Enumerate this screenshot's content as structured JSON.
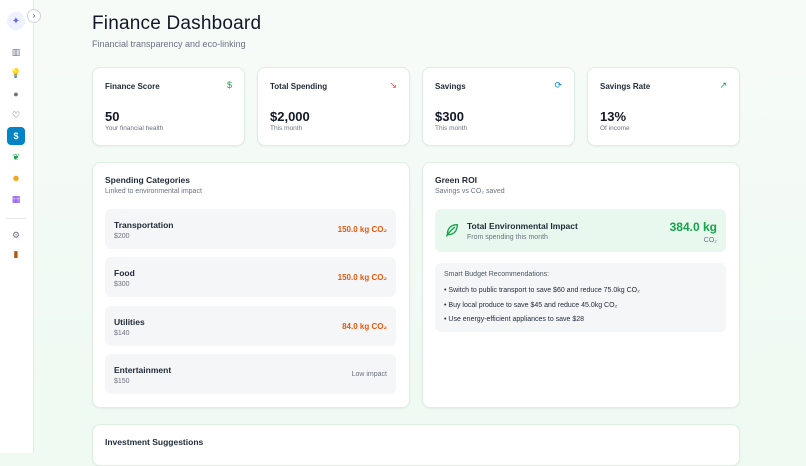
{
  "sidebar": {
    "collapse_glyph": "›",
    "items": [
      {
        "name": "dashboard",
        "glyph": "▥"
      },
      {
        "name": "ideas",
        "glyph": "💡"
      },
      {
        "name": "chat",
        "glyph": "●"
      },
      {
        "name": "health",
        "glyph": "♡"
      },
      {
        "name": "finance",
        "glyph": "$"
      },
      {
        "name": "eco",
        "glyph": "❦"
      },
      {
        "name": "people",
        "glyph": "☻"
      },
      {
        "name": "calendar",
        "glyph": "▦"
      },
      {
        "name": "settings",
        "glyph": "⚙"
      },
      {
        "name": "logout",
        "glyph": "▮"
      }
    ]
  },
  "header": {
    "title": "Finance Dashboard",
    "subtitle": "Financial transparency and eco-linking"
  },
  "stats": [
    {
      "label": "Finance Score",
      "value": "50",
      "note": "Your financial health",
      "icon": "$",
      "icon_color": "#16a34a"
    },
    {
      "label": "Total Spending",
      "value": "$2,000",
      "note": "This month",
      "icon": "↘",
      "icon_color": "#ef4444"
    },
    {
      "label": "Savings",
      "value": "$300",
      "note": "This month",
      "icon": "⟳",
      "icon_color": "#0284c7"
    },
    {
      "label": "Savings Rate",
      "value": "13%",
      "note": "Of income",
      "icon": "↗",
      "icon_color": "#16a34a"
    }
  ],
  "spending": {
    "title": "Spending Categories",
    "subtitle": "Linked to environmental impact",
    "categories": [
      {
        "name": "Transportation",
        "amount": "$200",
        "impact": "150.0 kg CO₂"
      },
      {
        "name": "Food",
        "amount": "$300",
        "impact": "150.0 kg CO₂"
      },
      {
        "name": "Utilities",
        "amount": "$140",
        "impact": "84.0 kg CO₂"
      },
      {
        "name": "Entertainment",
        "amount": "$150",
        "impact": "Low impact"
      }
    ]
  },
  "green_roi": {
    "title": "Green ROI",
    "subtitle": "Savings vs CO₂ saved",
    "impact_title": "Total Environmental Impact",
    "impact_sub": "From spending this month",
    "impact_value": "384.0 kg",
    "impact_unit": "CO₂",
    "rec_title": "Smart Budget Recommendations:",
    "recommendations": [
      "• Switch to public transport to save $60 and reduce 75.0kg CO₂",
      "• Buy local produce to save $45 and reduce 45.0kg CO₂",
      "• Use energy-efficient appliances to save $28"
    ]
  },
  "investment": {
    "title": "Investment Suggestions"
  }
}
